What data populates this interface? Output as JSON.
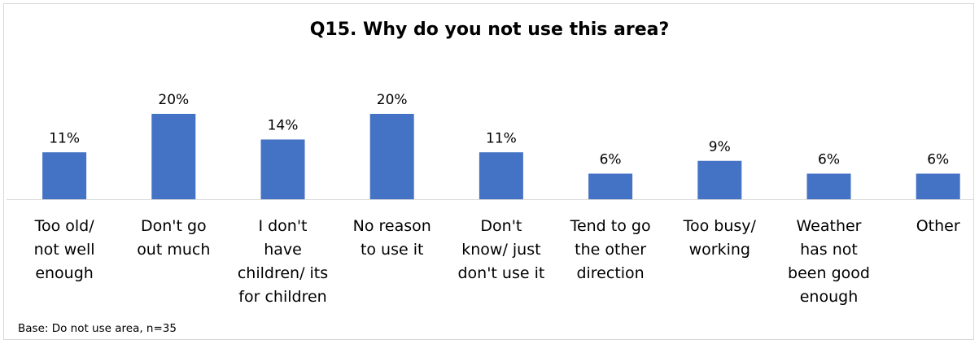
{
  "chart_data": {
    "type": "bar",
    "title": "Q15. Why do you not use this area?",
    "categories": [
      [
        "Too old/",
        "not well",
        "enough"
      ],
      [
        "Don't go",
        "out much"
      ],
      [
        "I don't",
        "have",
        "children/ its",
        "for children"
      ],
      [
        "No reason",
        "to use it"
      ],
      [
        "Don't",
        "know/ just",
        "don't use it"
      ],
      [
        "Tend to go",
        "the other",
        "direction"
      ],
      [
        "Too busy/",
        "working"
      ],
      [
        "Weather",
        "has not",
        "been good",
        "enough"
      ],
      [
        "Other"
      ]
    ],
    "values": [
      11,
      20,
      14,
      20,
      11,
      6,
      9,
      6,
      6
    ],
    "value_labels": [
      "11%",
      "20%",
      "14%",
      "20%",
      "11%",
      "6%",
      "9%",
      "6%",
      "6%"
    ],
    "unit": "%",
    "bar_color": "#4472C4",
    "grid": false,
    "legend": "none"
  },
  "footnote": "Base: Do not use area, n=35"
}
